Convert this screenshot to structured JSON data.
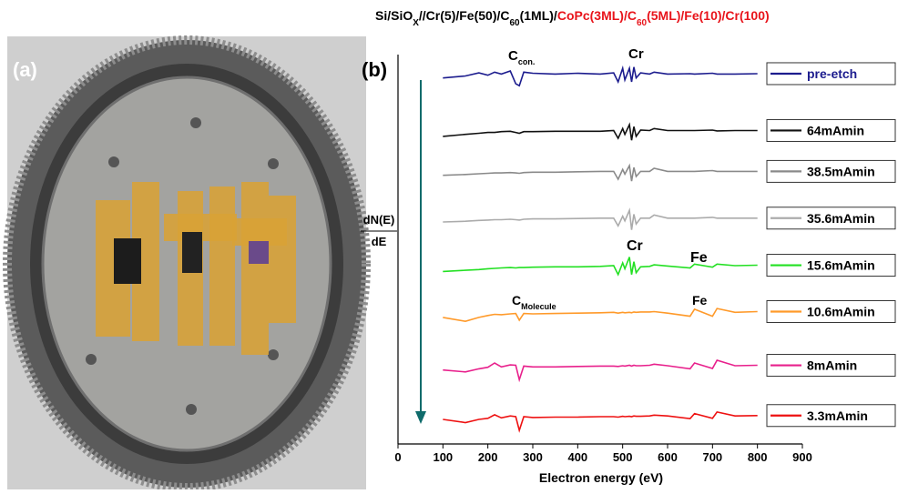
{
  "figure": {
    "panel_labels": [
      "(a)",
      "(b)"
    ]
  },
  "chart_data": {
    "type": "line",
    "title_parts": [
      {
        "text": "Si/SiO"
      },
      {
        "text": "X",
        "sub": true
      },
      {
        "text": "//Cr(5)/Fe(50)/C"
      },
      {
        "text": "60",
        "sub": true
      },
      {
        "text": "(1ML)/"
      },
      {
        "text": "CoPc(3ML)/C",
        "color": "#e8141b"
      },
      {
        "text": "60",
        "sub": true,
        "color": "#e8141b"
      },
      {
        "text": "(5ML)/Fe(10)/Cr(100)",
        "color": "#e8141b"
      }
    ],
    "xlabel": "Electron energy (eV)",
    "ylabel": {
      "numerator": "dN(E)",
      "denominator": "dE"
    },
    "xlim": [
      0,
      900
    ],
    "xticks": [
      0,
      100,
      200,
      300,
      400,
      500,
      600,
      700,
      800,
      900
    ],
    "ylim": [
      0,
      100
    ],
    "annotations": [
      {
        "text": "C",
        "sub": "con."
      },
      {
        "text": "Cr"
      },
      {
        "text": "Cr"
      },
      {
        "text": "Fe"
      },
      {
        "text": "C",
        "sub": "Molecule"
      },
      {
        "text": "Fe"
      }
    ],
    "x": [
      100,
      150,
      180,
      200,
      215,
      230,
      250,
      262,
      270,
      280,
      300,
      350,
      400,
      450,
      480,
      490,
      500,
      505,
      515,
      520,
      525,
      530,
      540,
      560,
      570,
      600,
      650,
      660,
      700,
      710,
      750,
      800
    ],
    "series": [
      {
        "name": "pre-etch",
        "color": "#1c1c8e",
        "label_color": "#1c1c8e",
        "values": [
          94,
          94.5,
          95.3,
          94.7,
          95.5,
          95,
          95.8,
          92.5,
          92,
          95.5,
          95.2,
          95,
          95.2,
          95,
          95.3,
          93,
          96.5,
          93.5,
          96.5,
          93,
          96.8,
          94,
          95.3,
          95,
          95.5,
          95,
          95.1,
          95,
          95.2,
          95,
          95,
          95.1
        ]
      },
      {
        "name": "64mAmin",
        "color": "#111111",
        "values": [
          79,
          79.5,
          79.8,
          80,
          80,
          80.2,
          80.3,
          80,
          79.8,
          80.2,
          80.2,
          80.3,
          80.3,
          80.3,
          80.5,
          78.5,
          81,
          79.5,
          82,
          78,
          81.5,
          79,
          80.6,
          80.5,
          81,
          80.5,
          80.5,
          80.5,
          80.6,
          80.4,
          80.5,
          80.5
        ]
      },
      {
        "name": "38.5mAmin",
        "color": "#8a8a8a",
        "values": [
          69,
          69.2,
          69.4,
          69.5,
          69.6,
          69.6,
          69.7,
          69.6,
          69.5,
          69.7,
          69.8,
          69.8,
          69.9,
          70,
          70,
          68,
          70.5,
          69.3,
          71.5,
          67.5,
          71,
          68.7,
          70,
          70,
          70.8,
          70,
          70,
          70,
          70.2,
          70,
          70,
          70
        ]
      },
      {
        "name": "35.6mAmin",
        "color": "#ababab",
        "values": [
          57,
          57.2,
          57.4,
          57.5,
          57.6,
          57.6,
          57.7,
          57.6,
          57.5,
          57.7,
          57.8,
          57.8,
          57.9,
          58,
          58,
          56,
          58.5,
          57.3,
          60,
          55,
          59,
          56.5,
          58,
          58,
          58.8,
          58,
          58,
          58,
          58.2,
          58,
          58,
          58
        ]
      },
      {
        "name": "15.6mAmin",
        "color": "#22e022",
        "values": [
          44.3,
          44.6,
          44.8,
          45,
          45.1,
          45.2,
          45.3,
          45.2,
          45.3,
          45.3,
          45.4,
          45.5,
          45.5,
          45.6,
          45.8,
          43.5,
          46.5,
          45,
          48,
          43.5,
          46.8,
          44,
          45.5,
          45.6,
          46,
          45.7,
          45.2,
          46.2,
          45.4,
          46.2,
          45.8,
          45.9
        ]
      },
      {
        "name": "10.6mAmin",
        "color": "#ff9a2a",
        "values": [
          32.5,
          31.5,
          32.5,
          33,
          33.3,
          33.2,
          33.4,
          33.5,
          31.8,
          33.5,
          33.4,
          33.5,
          33.6,
          33.7,
          33.8,
          33.6,
          33.8,
          33.7,
          33.8,
          33.7,
          33.9,
          33.8,
          33.9,
          33.9,
          34,
          33.6,
          32.8,
          34.6,
          32.8,
          34.8,
          33.8,
          34
        ]
      },
      {
        "name": "8mAmin",
        "color": "#e8208c",
        "values": [
          19,
          18.5,
          19.3,
          19.7,
          20.8,
          19.8,
          20.3,
          20.2,
          16.5,
          20,
          19.8,
          19.8,
          19.9,
          20,
          20,
          19.9,
          20.1,
          20,
          20.2,
          20,
          20.2,
          20.1,
          20.1,
          20.2,
          20.5,
          20.1,
          19.3,
          20.8,
          19.4,
          21.5,
          20.1,
          20.2
        ]
      },
      {
        "name": "3.3mAmin",
        "color": "#ee1111",
        "values": [
          6.3,
          5.5,
          6.3,
          6.6,
          7.5,
          6.7,
          7.2,
          7,
          3.5,
          7,
          6.8,
          6.9,
          6.9,
          7,
          7,
          6.9,
          7.1,
          7,
          7.1,
          7,
          7.2,
          7.1,
          7.1,
          7.2,
          7.4,
          7.2,
          6.5,
          7.8,
          6.6,
          8.2,
          7.2,
          7.3
        ]
      }
    ]
  }
}
